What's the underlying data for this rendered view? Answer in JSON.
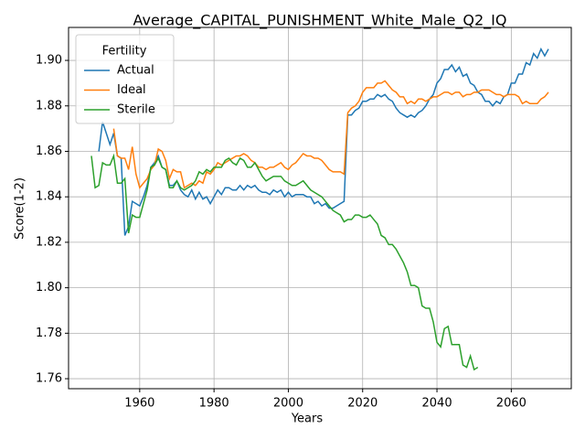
{
  "chart_data": {
    "type": "line",
    "title": "Average_CAPITAL_PUNISHMENT_White_Male_Q2_IQ",
    "xlabel": "Years",
    "ylabel": "Score(1-2)",
    "legend_title": "Fertility",
    "legend": "upper left",
    "grid": true,
    "x": [
      1947,
      1948,
      1949,
      1950,
      1951,
      1952,
      1953,
      1954,
      1955,
      1956,
      1957,
      1958,
      1959,
      1960,
      1961,
      1962,
      1963,
      1964,
      1965,
      1966,
      1967,
      1968,
      1969,
      1970,
      1971,
      1972,
      1973,
      1974,
      1975,
      1976,
      1977,
      1978,
      1979,
      1980,
      1981,
      1982,
      1983,
      1984,
      1985,
      1986,
      1987,
      1988,
      1989,
      1990,
      1991,
      1992,
      1993,
      1994,
      1995,
      1996,
      1997,
      1998,
      1999,
      2000,
      2001,
      2002,
      2003,
      2004,
      2005,
      2006,
      2007,
      2008,
      2009,
      2010,
      2011,
      2012,
      2013,
      2014,
      2015,
      2016,
      2017,
      2018,
      2019,
      2020,
      2021,
      2022,
      2023,
      2024,
      2025,
      2026,
      2027,
      2028,
      2029,
      2030,
      2031,
      2032,
      2033,
      2034,
      2035,
      2036,
      2037,
      2038,
      2039,
      2040,
      2041,
      2042,
      2043,
      2044,
      2045,
      2046,
      2047,
      2048,
      2049,
      2050,
      2051,
      2052,
      2053,
      2054,
      2055,
      2056,
      2057,
      2058,
      2059,
      2060,
      2061,
      2062,
      2063,
      2064,
      2065,
      2066,
      2067,
      2068,
      2069,
      2070
    ],
    "xlim": [
      1940.85,
      2076.15
    ],
    "xticks": [
      1960,
      1980,
      2000,
      2020,
      2040,
      2060
    ],
    "ylim": [
      1.7556,
      1.9145
    ],
    "yticks": [
      1.76,
      1.78,
      {
        "value": 1.8,
        "label": "1.80"
      },
      1.82,
      1.84,
      1.86,
      1.88,
      {
        "value": 1.9,
        "label": "1.90"
      }
    ],
    "series": [
      {
        "name": "Actual",
        "color": "#1f77b4",
        "values": [
          null,
          null,
          1.86,
          1.873,
          1.868,
          1.863,
          1.868,
          1.858,
          1.857,
          1.823,
          1.827,
          1.838,
          1.837,
          1.836,
          1.84,
          1.845,
          1.853,
          1.855,
          1.858,
          1.853,
          1.852,
          1.845,
          1.845,
          1.847,
          1.843,
          1.841,
          1.84,
          1.843,
          1.839,
          1.842,
          1.839,
          1.84,
          1.837,
          1.84,
          1.843,
          1.841,
          1.844,
          1.844,
          1.843,
          1.843,
          1.845,
          1.843,
          1.845,
          1.844,
          1.845,
          1.843,
          1.842,
          1.842,
          1.841,
          1.843,
          1.842,
          1.843,
          1.84,
          1.842,
          1.84,
          1.841,
          1.841,
          1.841,
          1.84,
          1.84,
          1.837,
          1.838,
          1.836,
          1.837,
          1.835,
          1.835,
          1.836,
          1.837,
          1.838,
          1.876,
          1.876,
          1.878,
          1.879,
          1.882,
          1.882,
          1.883,
          1.883,
          1.885,
          1.884,
          1.885,
          1.883,
          1.882,
          1.879,
          1.877,
          1.876,
          1.875,
          1.876,
          1.875,
          1.877,
          1.878,
          1.88,
          1.883,
          1.885,
          1.89,
          1.892,
          1.896,
          1.896,
          1.898,
          1.895,
          1.897,
          1.893,
          1.894,
          1.89,
          1.889,
          1.886,
          1.885,
          1.882,
          1.882,
          1.88,
          1.882,
          1.881,
          1.884,
          1.885,
          1.89,
          1.89,
          1.894,
          1.894,
          1.899,
          1.898,
          1.903,
          1.901,
          1.905,
          1.902,
          1.905
        ]
      },
      {
        "name": "Ideal",
        "color": "#ff7f0e",
        "values": [
          null,
          null,
          null,
          null,
          null,
          null,
          1.87,
          1.858,
          1.857,
          1.857,
          1.852,
          1.862,
          1.85,
          1.844,
          1.846,
          1.848,
          1.852,
          1.854,
          1.861,
          1.86,
          1.856,
          1.848,
          1.852,
          1.851,
          1.851,
          1.844,
          1.845,
          1.846,
          1.845,
          1.847,
          1.846,
          1.851,
          1.85,
          1.852,
          1.855,
          1.854,
          1.855,
          1.856,
          1.857,
          1.858,
          1.858,
          1.859,
          1.858,
          1.856,
          1.855,
          1.853,
          1.853,
          1.852,
          1.853,
          1.853,
          1.854,
          1.855,
          1.853,
          1.852,
          1.854,
          1.855,
          1.857,
          1.859,
          1.858,
          1.858,
          1.857,
          1.857,
          1.856,
          1.854,
          1.852,
          1.851,
          1.851,
          1.851,
          1.85,
          1.877,
          1.879,
          1.88,
          1.882,
          1.886,
          1.888,
          1.888,
          1.888,
          1.89,
          1.89,
          1.891,
          1.889,
          1.887,
          1.886,
          1.884,
          1.884,
          1.881,
          1.882,
          1.881,
          1.883,
          1.883,
          1.882,
          1.883,
          1.884,
          1.884,
          1.885,
          1.886,
          1.886,
          1.885,
          1.886,
          1.886,
          1.884,
          1.885,
          1.885,
          1.886,
          1.886,
          1.887,
          1.887,
          1.887,
          1.886,
          1.885,
          1.885,
          1.884,
          1.885,
          1.885,
          1.885,
          1.884,
          1.881,
          1.882,
          1.881,
          1.881,
          1.881,
          1.883,
          1.884,
          1.886
        ]
      },
      {
        "name": "Sterile",
        "color": "#2ca02c",
        "values": [
          1.858,
          1.844,
          1.845,
          1.855,
          1.854,
          1.854,
          1.858,
          1.846,
          1.846,
          1.848,
          1.824,
          1.832,
          1.831,
          1.831,
          1.837,
          1.843,
          1.853,
          1.854,
          1.857,
          1.853,
          1.852,
          1.844,
          1.844,
          1.847,
          1.844,
          1.843,
          1.844,
          1.845,
          1.847,
          1.851,
          1.85,
          1.852,
          1.851,
          1.853,
          1.853,
          1.853,
          1.856,
          1.857,
          1.855,
          1.854,
          1.857,
          1.856,
          1.853,
          1.853,
          1.855,
          1.852,
          1.849,
          1.847,
          1.848,
          1.849,
          1.849,
          1.849,
          1.847,
          1.846,
          1.845,
          1.845,
          1.846,
          1.847,
          1.845,
          1.843,
          1.842,
          1.841,
          1.84,
          1.838,
          1.836,
          1.834,
          1.833,
          1.832,
          1.829,
          1.83,
          1.83,
          1.832,
          1.832,
          1.831,
          1.831,
          1.832,
          1.83,
          1.828,
          1.823,
          1.822,
          1.819,
          1.819,
          1.817,
          1.814,
          1.811,
          1.807,
          1.801,
          1.801,
          1.8,
          1.792,
          1.791,
          1.791,
          1.785,
          1.776,
          1.774,
          1.782,
          1.783,
          1.775,
          1.775,
          1.775,
          1.766,
          1.765,
          1.77,
          1.764,
          1.765,
          null,
          null,
          null,
          null,
          null,
          null,
          null,
          null,
          null,
          null,
          null,
          null,
          null,
          null,
          null,
          null,
          null,
          null,
          null
        ]
      }
    ]
  }
}
